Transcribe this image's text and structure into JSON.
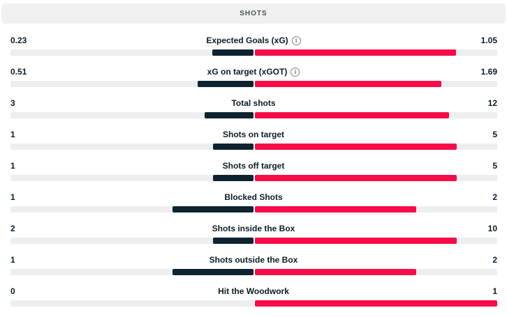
{
  "header": {
    "title": "SHOTS"
  },
  "colors": {
    "home": "#0e2330",
    "away": "#f80c47",
    "track": "#eceef0"
  },
  "stats": [
    {
      "label": "Expected Goals (xG)",
      "home": "0.23",
      "away": "1.05",
      "info": true,
      "home_share": 0.17,
      "away_share": 0.83
    },
    {
      "label": "xG on target (xGOT)",
      "home": "0.51",
      "away": "1.69",
      "info": true,
      "home_share": 0.23,
      "away_share": 0.77
    },
    {
      "label": "Total shots",
      "home": "3",
      "away": "12",
      "info": false,
      "home_share": 0.2,
      "away_share": 0.8
    },
    {
      "label": "Shots on target",
      "home": "1",
      "away": "5",
      "info": false,
      "home_share": 0.167,
      "away_share": 0.833
    },
    {
      "label": "Shots off target",
      "home": "1",
      "away": "5",
      "info": false,
      "home_share": 0.167,
      "away_share": 0.833
    },
    {
      "label": "Blocked Shots",
      "home": "1",
      "away": "2",
      "info": false,
      "home_share": 0.333,
      "away_share": 0.667
    },
    {
      "label": "Shots inside the Box",
      "home": "2",
      "away": "10",
      "info": false,
      "home_share": 0.167,
      "away_share": 0.833
    },
    {
      "label": "Shots outside the Box",
      "home": "1",
      "away": "2",
      "info": false,
      "home_share": 0.333,
      "away_share": 0.667
    },
    {
      "label": "Hit the Woodwork",
      "home": "0",
      "away": "1",
      "info": false,
      "home_share": 0.0,
      "away_share": 1.0
    }
  ]
}
